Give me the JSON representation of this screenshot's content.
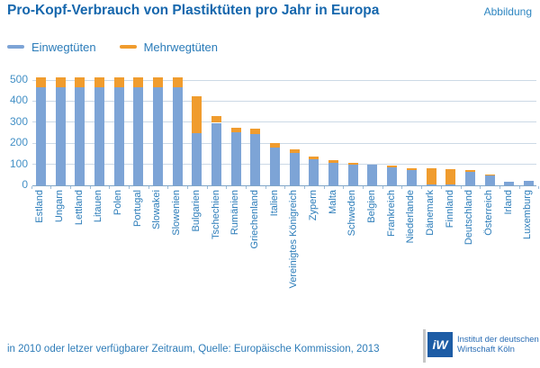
{
  "header": {
    "title": "Pro-Kopf-Verbrauch von Plastiktüten pro Jahr in Europa",
    "corner_label": "Abbildung"
  },
  "legend": {
    "items": [
      {
        "label": "Einwegtüten",
        "color": "#7da4d6"
      },
      {
        "label": "Mehrwegtüten",
        "color": "#f09c2e"
      }
    ]
  },
  "chart_data": {
    "type": "bar",
    "stacked": true,
    "title": "Pro-Kopf-Verbrauch von Plastiktüten pro Jahr in Europa",
    "xlabel": "",
    "ylabel": "",
    "ylim": [
      0,
      500
    ],
    "yticks": [
      0,
      100,
      200,
      300,
      400,
      500
    ],
    "grid": true,
    "legend_position": "top-left",
    "categories": [
      "Estland",
      "Ungarn",
      "Lettland",
      "Litauen",
      "Polen",
      "Portugal",
      "Slowakei",
      "Slowenien",
      "Bulgarien",
      "Tschechien",
      "Rumänien",
      "Griechenland",
      "Italien",
      "Vereinigtes Königreich",
      "Zypern",
      "Malta",
      "Schweden",
      "Belgien",
      "Frankreich",
      "Niederlande",
      "Dänemark",
      "Finnland",
      "Deutschland",
      "Österreich",
      "Irland",
      "Luxemburg"
    ],
    "series": [
      {
        "name": "Einwegtüten",
        "color": "#7da4d6",
        "values": [
          466,
          466,
          466,
          466,
          466,
          466,
          466,
          466,
          246,
          297,
          252,
          242,
          181,
          153,
          125,
          107,
          100,
          100,
          84,
          71,
          4,
          4,
          64,
          45,
          18,
          20
        ]
      },
      {
        "name": "Mehrwegtüten",
        "color": "#f09c2e",
        "values": [
          45,
          45,
          45,
          45,
          45,
          45,
          45,
          45,
          175,
          33,
          23,
          27,
          18,
          20,
          12,
          11,
          8,
          0,
          10,
          9,
          76,
          73,
          7,
          6,
          0,
          0
        ]
      }
    ]
  },
  "footer": {
    "note": "in 2010 oder letzer verfügbarer Zeitraum, Quelle: Europäische Kommission, 2013",
    "logo": {
      "mark": "iW",
      "line1": "Institut der deutschen",
      "line2": "Wirtschaft Köln"
    }
  },
  "colors": {
    "title": "#1667ad",
    "corner_label": "#2e86c1",
    "axis_tick_text": "#4390c6",
    "category_text": "#2b7cb9",
    "gridline": "#ccd9e6",
    "baseline": "#7fa6c8",
    "tick_mark": "#9dbcd8",
    "bar_blue": "#7da4d6",
    "bar_orange": "#f09c2e",
    "logo_blue": "#1d5ca5"
  }
}
